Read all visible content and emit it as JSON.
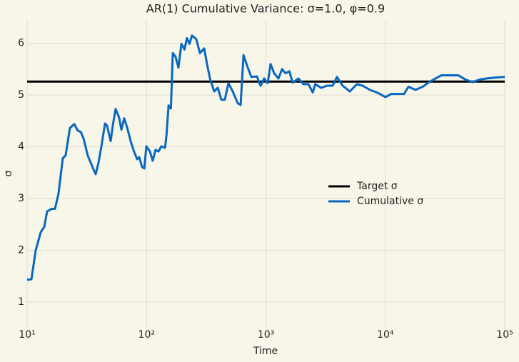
{
  "chart_data": {
    "type": "line",
    "title": "AR(1) Cumulative Variance: σ=1.0, φ=0.9",
    "x_label": "Time",
    "y_label": "σ",
    "xscale": "log",
    "grid": true,
    "legend": "center right",
    "xlim": [
      10,
      100000
    ],
    "ylim": [
      0.49,
      6.45
    ],
    "xticks": [
      {
        "value": 10,
        "label": "10¹"
      },
      {
        "value": 100,
        "label": "10²"
      },
      {
        "value": 1000,
        "label": "10³"
      },
      {
        "value": 10000,
        "label": "10⁴"
      },
      {
        "value": 100000,
        "label": "10⁵"
      }
    ],
    "yticks": [
      1,
      2,
      3,
      4,
      5,
      6
    ],
    "series": [
      {
        "name": "Target σ",
        "color": "#000000",
        "x": [
          10,
          100000
        ],
        "values": [
          5.26,
          5.26
        ]
      },
      {
        "name": "Cumulative σ",
        "color": "#0868c0",
        "x": [
          10,
          10.86,
          11.8,
          13.0,
          13.9,
          14.7,
          16.0,
          17.1,
          18.3,
          19.9,
          21.0,
          22.8,
          24.8,
          26.6,
          28.1,
          29.7,
          32.2,
          36.0,
          37.5,
          39.6,
          41.9,
          44.9,
          46.7,
          50.1,
          52.3,
          55.1,
          59.0,
          61.6,
          65.0,
          68.7,
          73.6,
          78.8,
          83.4,
          86.8,
          91.8,
          95.8,
          99.7,
          106.7,
          112.7,
          119,
          126,
          133,
          143,
          147,
          153,
          160,
          166,
          175,
          185,
          196,
          208,
          218,
          229,
          240,
          261,
          280,
          304,
          321,
          340,
          369,
          395,
          423,
          453,
          485,
          527,
          581,
          614,
          649,
          695,
          754,
          841,
          902,
          966,
          1035,
          1094,
          1172,
          1274,
          1365,
          1460,
          1570,
          1675,
          1870,
          2060,
          2270,
          2466,
          2590,
          2905,
          3245,
          3620,
          3935,
          4395,
          5045,
          5785,
          6460,
          7415,
          8510,
          10030,
          11200,
          12850,
          14350,
          15600,
          17900,
          20550,
          22930,
          26330,
          29400,
          34650,
          40850,
          46900,
          53800,
          61800,
          71000,
          84800,
          100000
        ],
        "values": [
          1.43,
          1.44,
          2.0,
          2.35,
          2.45,
          2.75,
          2.8,
          2.8,
          3.09,
          3.78,
          3.83,
          4.36,
          4.44,
          4.31,
          4.29,
          4.16,
          3.83,
          3.56,
          3.47,
          3.69,
          4.01,
          4.45,
          4.41,
          4.11,
          4.43,
          4.73,
          4.56,
          4.33,
          4.55,
          4.38,
          4.11,
          3.9,
          3.76,
          3.8,
          3.61,
          3.58,
          4.01,
          3.91,
          3.73,
          3.94,
          3.91,
          4.01,
          3.98,
          4.23,
          4.8,
          4.74,
          5.81,
          5.74,
          5.53,
          5.99,
          5.88,
          6.1,
          5.99,
          6.15,
          6.08,
          5.81,
          5.9,
          5.6,
          5.32,
          5.07,
          5.14,
          4.91,
          4.91,
          5.23,
          5.07,
          4.84,
          4.81,
          5.77,
          5.57,
          5.35,
          5.36,
          5.18,
          5.32,
          5.23,
          5.6,
          5.42,
          5.32,
          5.5,
          5.42,
          5.46,
          5.24,
          5.32,
          5.21,
          5.21,
          5.05,
          5.21,
          5.14,
          5.18,
          5.18,
          5.35,
          5.18,
          5.07,
          5.21,
          5.18,
          5.1,
          5.05,
          4.96,
          5.02,
          5.02,
          5.02,
          5.16,
          5.1,
          5.16,
          5.24,
          5.32,
          5.38,
          5.38,
          5.38,
          5.3,
          5.25,
          5.3,
          5.32,
          5.34,
          5.35
        ]
      }
    ]
  }
}
